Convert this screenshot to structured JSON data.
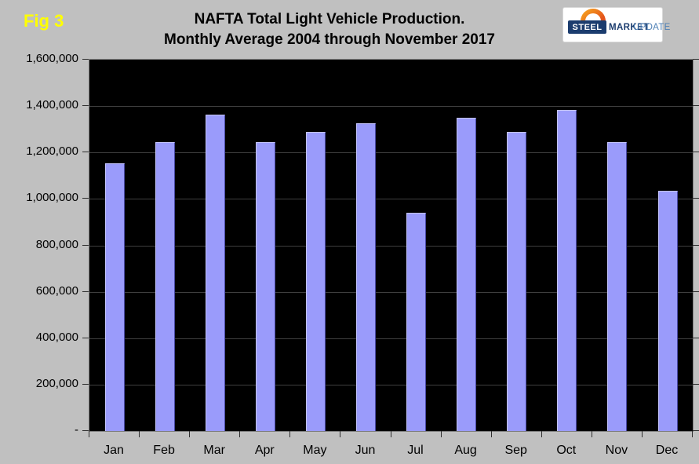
{
  "figure_label": "Fig 3",
  "title": {
    "line1": "NAFTA Total Light Vehicle Production.",
    "line2": "Monthly Average 2004 through November 2017"
  },
  "logo": {
    "name": "steel-market-update-logo",
    "steel": "STEEL",
    "market": "MARKET",
    "update": "UPDATE"
  },
  "chart_data": {
    "type": "bar",
    "title": "NAFTA Total Light Vehicle Production. Monthly Average 2004 through November 2017",
    "categories": [
      "Jan",
      "Feb",
      "Mar",
      "Apr",
      "May",
      "Jun",
      "Jul",
      "Aug",
      "Sep",
      "Oct",
      "Nov",
      "Dec"
    ],
    "values": [
      1155000,
      1245000,
      1365000,
      1245000,
      1290000,
      1325000,
      940000,
      1350000,
      1290000,
      1385000,
      1245000,
      1035000
    ],
    "xlabel": "",
    "ylabel": "",
    "ylim": [
      0,
      1600000
    ],
    "ytick_interval": 200000,
    "ytick_labels_top_down": [
      "1,600,000",
      "1,400,000",
      "1,200,000",
      "1,000,000",
      "800,000",
      "600,000",
      "400,000",
      "200,000",
      "-"
    ],
    "grid": true,
    "legend": false,
    "plot_background": "#000000",
    "gridline_color": "#3F3F3F",
    "bar_color": "#9A9BFB"
  },
  "colors": {
    "page_background": "#C0C0C0",
    "figure_label": "#FFFF00",
    "title_text": "#000000",
    "logo_navy": "#1B3C6E",
    "logo_steel_blue": "#4D7FB5",
    "logo_orange": "#E4561B"
  }
}
